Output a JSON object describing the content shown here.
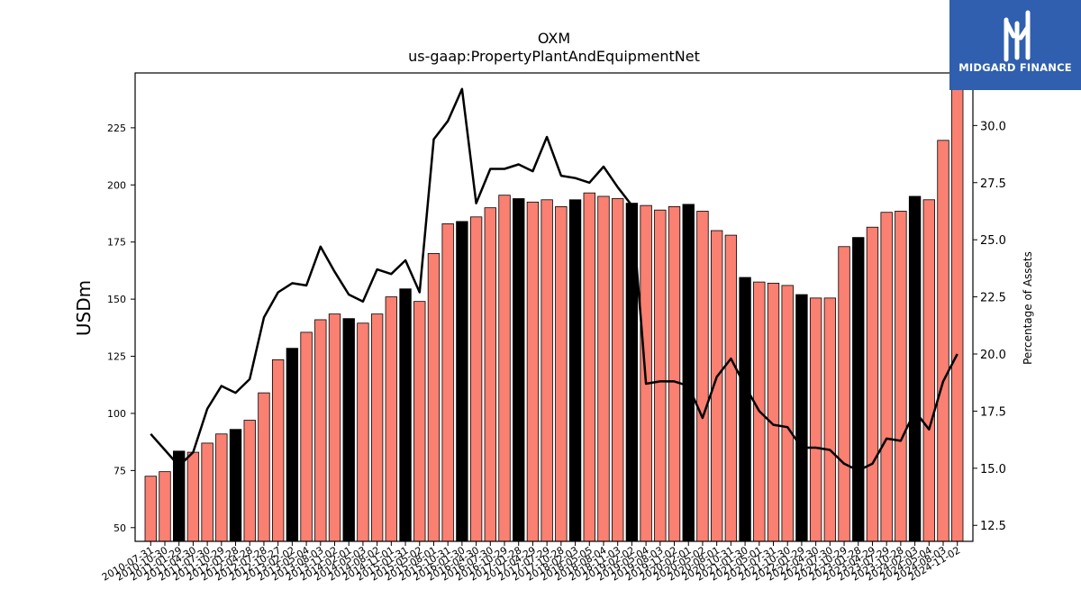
{
  "chart_data": {
    "type": "bar",
    "title": "OXM",
    "subtitle": "us-gaap:PropertyPlantAndEquipmentNet",
    "ylabel": "USDm",
    "y2label": "Percentage of Assets",
    "ylim": [
      44,
      249
    ],
    "y2lim": [
      11.8,
      32.3
    ],
    "yticks": [
      50,
      75,
      100,
      125,
      150,
      175,
      200,
      225
    ],
    "y2ticks": [
      12.5,
      15.0,
      17.5,
      20.0,
      22.5,
      25.0,
      27.5,
      30.0
    ],
    "categories": [
      "2010-07-31",
      "2010-10-30",
      "2011-01-29",
      "2011-04-30",
      "2011-07-30",
      "2011-10-29",
      "2012-01-28",
      "2012-04-28",
      "2012-07-28",
      "2012-10-27",
      "2013-02-02",
      "2013-05-04",
      "2013-08-03",
      "2013-11-02",
      "2014-02-01",
      "2014-05-03",
      "2014-08-02",
      "2014-11-01",
      "2015-01-31",
      "2015-05-02",
      "2015-08-01",
      "2015-10-31",
      "2016-01-30",
      "2016-04-30",
      "2016-07-30",
      "2016-10-29",
      "2017-01-28",
      "2017-04-29",
      "2017-07-29",
      "2017-10-28",
      "2018-02-03",
      "2018-05-05",
      "2018-08-04",
      "2018-11-03",
      "2019-02-02",
      "2019-05-04",
      "2019-08-03",
      "2019-11-02",
      "2020-02-01",
      "2020-05-02",
      "2020-08-01",
      "2020-10-31",
      "2021-01-30",
      "2021-05-01",
      "2021-07-31",
      "2021-10-30",
      "2022-01-29",
      "2022-04-30",
      "2022-07-30",
      "2022-10-29",
      "2023-01-28",
      "2023-04-29",
      "2023-07-29",
      "2023-10-28",
      "2024-02-03",
      "2024-05-04",
      "2024-08-03",
      "2024-11-02"
    ],
    "visible_tick_labels": [
      "2010-07-31",
      "2010-10-30",
      "2011-01-29",
      "2011-04-30",
      "2011-07-30",
      "2011-10-29",
      "2012-01-28",
      "2012-04-28",
      "2012-07-28",
      "2012-10-27",
      "2013-02-02",
      "2013-05-04",
      "2013-08-03",
      "2013-11-02",
      "2014-02-01",
      "2014-05-03",
      "2014-08-02",
      "2014-11-01",
      "2015-01-31",
      "2015-05-02",
      "2015-08-01",
      "2015-10-31",
      "2016-01-30",
      "2016-04-30",
      "2016-07-30",
      "2016-10-29",
      "2017-01-28",
      "2017-04-29",
      "2017-07-29",
      "2017-10-28",
      "2018-02-03",
      "2018-05-05",
      "2018-08-04",
      "2018-11-03",
      "2019-02-02",
      "2019-05-04",
      "2019-08-03",
      "2019-11-02",
      "2020-02-01",
      "2020-05-02",
      "2020-08-01",
      "2020-10-31",
      "2021-01-30",
      "2021-05-01",
      "2021-07-31",
      "2021-10-30",
      "2022-01-29",
      "2022-04-30",
      "2022-07-30",
      "2022-10-29",
      "2023-01-28",
      "2023-04-29",
      "2023-07-29",
      "2023-10-28",
      "2024-02-03",
      "2024-05-04",
      "2024-08-03",
      "2024-11-02"
    ],
    "series": [
      {
        "kind": "bar",
        "axis": "left",
        "values": [
          72.5,
          74.5,
          83.5,
          83,
          87,
          91,
          93,
          97,
          109,
          123.5,
          128.5,
          135.5,
          141,
          143.5,
          141.5,
          139.5,
          143.5,
          151,
          154.5,
          149,
          170,
          183,
          184,
          186,
          190,
          195.5,
          194,
          192.5,
          193.5,
          190.5,
          193.5,
          196.5,
          195,
          194,
          192,
          191,
          189,
          190.5,
          191.5,
          188.5,
          180,
          178,
          159.5,
          157.5,
          157,
          156,
          152,
          150.5,
          150.5,
          173,
          177,
          181.5,
          188,
          188.5,
          195,
          193.5,
          219.5,
          244
        ],
        "fiscal_year_end": [
          false,
          false,
          true,
          false,
          false,
          false,
          true,
          false,
          false,
          false,
          true,
          false,
          false,
          false,
          true,
          false,
          false,
          false,
          true,
          false,
          false,
          false,
          true,
          false,
          false,
          false,
          true,
          false,
          false,
          false,
          true,
          false,
          false,
          false,
          true,
          false,
          false,
          false,
          true,
          false,
          false,
          false,
          true,
          false,
          false,
          false,
          true,
          false,
          false,
          false,
          true,
          false,
          false,
          false,
          true,
          false,
          false,
          false
        ]
      },
      {
        "kind": "line",
        "axis": "right",
        "values": [
          16.5,
          15.8,
          15.1,
          15.7,
          17.6,
          18.6,
          18.3,
          18.9,
          21.6,
          22.7,
          23.1,
          23.0,
          24.7,
          23.6,
          22.6,
          22.3,
          23.7,
          23.5,
          24.1,
          22.7,
          29.4,
          30.2,
          31.6,
          26.6,
          28.1,
          28.1,
          28.3,
          28.0,
          29.5,
          27.8,
          27.7,
          27.5,
          28.2,
          27.3,
          26.5,
          18.7,
          18.8,
          18.8,
          18.6,
          17.2,
          19.0,
          19.8,
          18.6,
          17.5,
          16.9,
          16.8,
          15.9,
          15.9,
          15.8,
          15.2,
          14.9,
          15.2,
          16.3,
          16.2,
          17.5,
          16.7,
          18.8,
          20.0
        ]
      }
    ],
    "colors": {
      "bar": "#fa8072",
      "bar_fiscal_year_end": "#000000",
      "line": "#000000",
      "axis": "#000000"
    }
  },
  "logo": {
    "text": "MIDGARD FINANCE",
    "color": "#2f5fae"
  }
}
